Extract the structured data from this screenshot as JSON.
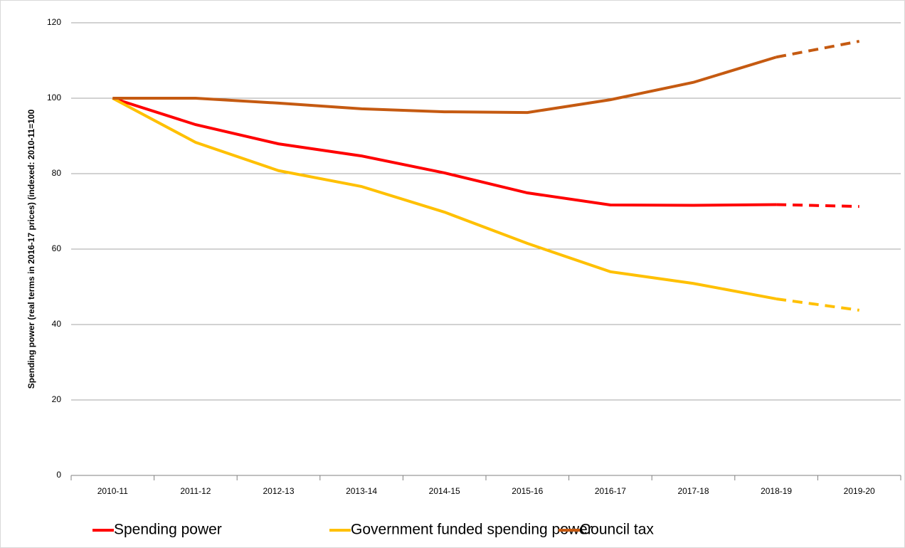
{
  "chart_data": {
    "type": "line",
    "y_label": "Spending power (real terms in 2016-17 prices) (indexed: 2010-11=100",
    "categories": [
      "2010-11",
      "2011-12",
      "2012-13",
      "2013-14",
      "2014-15",
      "2015-16",
      "2016-17",
      "2017-18",
      "2018-19",
      "2019-20"
    ],
    "series": [
      {
        "name": "Spending power",
        "color": "#ff0000",
        "values": [
          100,
          93.0,
          87.9,
          84.7,
          80.2,
          74.9,
          71.7,
          71.6,
          71.8,
          71.3
        ]
      },
      {
        "name": "Government funded spending power",
        "color": "#ffc000",
        "values": [
          100,
          88.3,
          80.8,
          76.6,
          69.8,
          61.5,
          54.0,
          50.9,
          46.8,
          43.8
        ]
      },
      {
        "name": "Council tax",
        "color": "#c55a11",
        "values": [
          100,
          100,
          98.7,
          97.2,
          96.4,
          96.2,
          99.6,
          104.2,
          110.9,
          115.1
        ]
      }
    ],
    "dashed_from": "2018-19",
    "ylim": [
      0,
      120
    ],
    "yticks": [
      0,
      20,
      40,
      60,
      80,
      100,
      120
    ],
    "grid": true,
    "legend": "bottom"
  }
}
